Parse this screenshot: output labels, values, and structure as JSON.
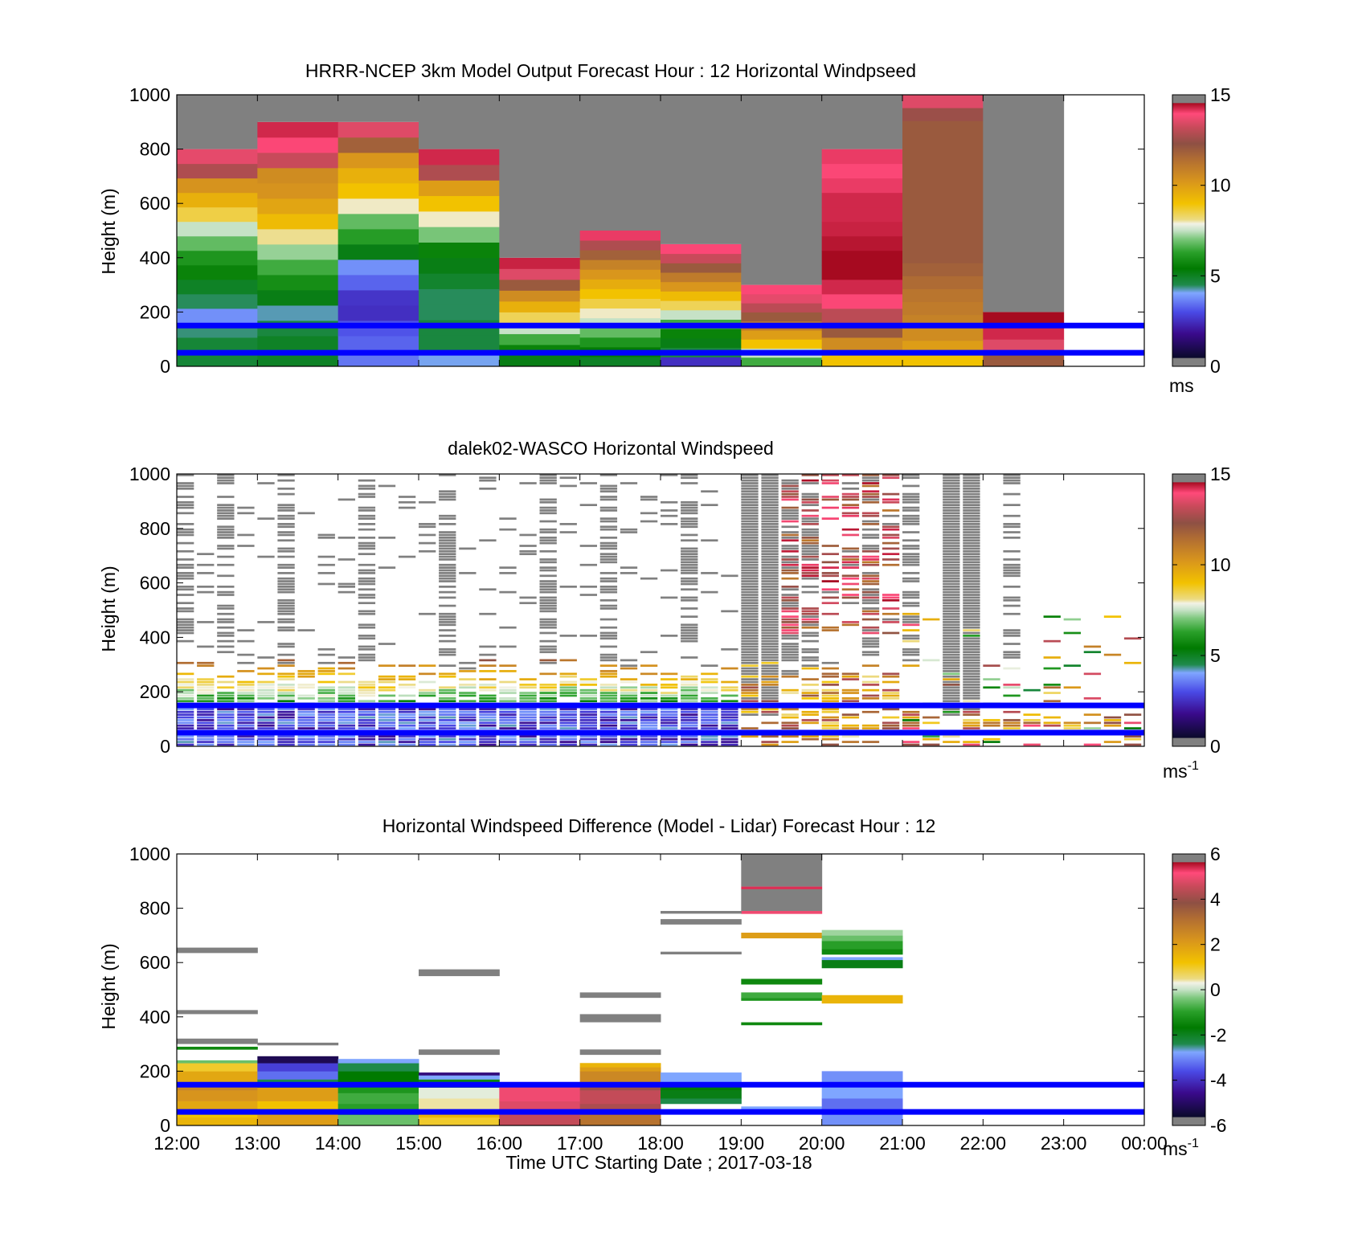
{
  "xaxis": {
    "ticks": [
      "12:00",
      "13:00",
      "14:00",
      "15:00",
      "16:00",
      "17:00",
      "18:00",
      "19:00",
      "20:00",
      "21:00",
      "22:00",
      "23:00",
      "00:00"
    ],
    "label": "Time UTC  Starting Date ; 2017-03-18"
  },
  "marker_lines": {
    "color": "#0000ff",
    "heights_m": [
      150,
      50
    ]
  },
  "chart_data": [
    {
      "type": "heatmap",
      "title": "HRRR-NCEP 3km Model Output   Forecast Hour : 12 Horizontal Windpseed",
      "ylabel": "Height (m)",
      "ylim": [
        0,
        1000
      ],
      "yticks": [
        "0",
        "200",
        "400",
        "600",
        "800",
        "1000"
      ],
      "colorbar": {
        "range": [
          0,
          15
        ],
        "ticks": [
          "0",
          "5",
          "10",
          "15"
        ],
        "unit": "ms",
        "unit_sup": ""
      },
      "hours": [
        "12:00",
        "13:00",
        "14:00",
        "15:00",
        "16:00",
        "17:00",
        "18:00",
        "19:00",
        "20:00",
        "21:00",
        "22:00",
        "23:00"
      ],
      "columns": [
        {
          "top": 800,
          "values": [
            4.6,
            4.6,
            4.2,
            3.5,
            4.3,
            4.8,
            5.5,
            6.0,
            6.8,
            7.5,
            8.6,
            9.5,
            10.3,
            12.8,
            13.6
          ]
        },
        {
          "top": 900,
          "values": [
            4.8,
            4.8,
            4.5,
            4.0,
            5.0,
            5.8,
            6.5,
            7.2,
            8.2,
            9.2,
            9.8,
            10.3,
            10.5,
            13.2,
            14.0,
            14.5
          ]
        },
        {
          "top": 900,
          "values": [
            3.2,
            3.0,
            2.8,
            2.2,
            2.3,
            3.0,
            3.5,
            5.0,
            6.2,
            6.8,
            8.0,
            9.0,
            9.5,
            10.2,
            11.8,
            13.5
          ]
        },
        {
          "top": 800,
          "values": [
            3.8,
            4.5,
            4.5,
            4.3,
            4.3,
            4.7,
            5.0,
            5.5,
            7.0,
            8.0,
            9.0,
            10.0,
            12.8,
            14.5
          ]
        },
        {
          "top": 400,
          "values": [
            5.0,
            5.5,
            6.5,
            7.5,
            8.5,
            9.5,
            10.5,
            12.0,
            13.5,
            14.6
          ]
        },
        {
          "top": 500,
          "values": [
            4.8,
            5.3,
            6.0,
            6.8,
            7.5,
            8.0,
            8.6,
            9.0,
            9.6,
            10.2,
            10.8,
            11.8,
            12.8,
            14.2
          ]
        },
        {
          "top": 450,
          "values": [
            2.2,
            4.5,
            5.0,
            5.5,
            6.5,
            7.5,
            8.5,
            9.2,
            10.2,
            11.0,
            12.0,
            13.2,
            14.0
          ]
        },
        {
          "top": 300,
          "values": [
            6.5,
            7.5,
            9.0,
            10.0,
            11.0,
            12.0,
            13.0,
            13.6,
            14.0
          ]
        },
        {
          "top": 800,
          "values": [
            9.0,
            10.5,
            12.0,
            13.0,
            14.0,
            14.5,
            15.0,
            15.0,
            14.8,
            14.6,
            14.5,
            14.5,
            14.2,
            14.0,
            14.2
          ]
        },
        {
          "top": 1000,
          "values": [
            9.0,
            10.0,
            10.5,
            10.8,
            11.0,
            11.2,
            11.5,
            11.8,
            12.0,
            12.0,
            12.0,
            12.0,
            12.0,
            12.0,
            12.0,
            12.0,
            12.0,
            12.0,
            12.0,
            12.5,
            13.5
          ]
        },
        {
          "top": 200,
          "values": [
            12.0,
            13.5,
            14.5,
            15.0
          ]
        }
      ]
    },
    {
      "type": "heatmap",
      "title": "dalek02-WASCO  Horizontal Windspeed",
      "ylabel": "Height (m)",
      "ylim": [
        0,
        1000
      ],
      "yticks": [
        "0",
        "200",
        "400",
        "600",
        "800",
        "1000"
      ],
      "colorbar": {
        "range": [
          0,
          15
        ],
        "ticks": [
          "0",
          "5",
          "10",
          "15"
        ],
        "unit": "ms",
        "unit_sup": "-1"
      },
      "hours": [
        "12:00",
        "13:00",
        "14:00",
        "15:00",
        "16:00",
        "17:00",
        "18:00",
        "19:00",
        "20:00",
        "21:00",
        "22:00",
        "23:00"
      ],
      "gap_cols": [
        0,
        2,
        5,
        9,
        13,
        18,
        21,
        25,
        29,
        30,
        31,
        34,
        36,
        38,
        39,
        41
      ]
    },
    {
      "type": "heatmap",
      "title": "Horizontal Windspeed Difference (Model - Lidar) Forecast Hour : 12",
      "ylabel": "Height (m)",
      "ylim": [
        0,
        1000
      ],
      "yticks": [
        "0",
        "200",
        "400",
        "600",
        "800",
        "1000"
      ],
      "colorbar": {
        "range": [
          -6,
          6
        ],
        "ticks": [
          "-6",
          "-4",
          "-2",
          "0",
          "2",
          "4",
          "6"
        ],
        "unit": "ms",
        "unit_sup": "-1"
      },
      "hours": [
        "12:00",
        "13:00",
        "14:00",
        "15:00",
        "16:00",
        "17:00",
        "18:00",
        "19:00",
        "20:00",
        "21:00",
        "22:00",
        "23:00"
      ],
      "cells": [
        [
          0,
          0,
          30,
          1.5
        ],
        [
          0,
          30,
          60,
          1.2
        ],
        [
          0,
          60,
          90,
          1.8
        ],
        [
          0,
          90,
          130,
          2.2
        ],
        [
          0,
          130,
          160,
          2.6
        ],
        [
          0,
          160,
          200,
          1.8
        ],
        [
          0,
          200,
          230,
          1.0
        ],
        [
          0,
          230,
          240,
          -0.5
        ],
        [
          0,
          280,
          290,
          -1.5
        ],
        [
          1,
          0,
          40,
          2.0
        ],
        [
          1,
          40,
          90,
          1.2
        ],
        [
          1,
          90,
          140,
          2.0
        ],
        [
          1,
          140,
          170,
          -2.5
        ],
        [
          1,
          170,
          200,
          -3.5
        ],
        [
          1,
          200,
          230,
          -4.0
        ],
        [
          1,
          230,
          255,
          -5.5
        ],
        [
          2,
          0,
          40,
          -0.5
        ],
        [
          2,
          40,
          80,
          -1.0
        ],
        [
          2,
          80,
          120,
          -0.8
        ],
        [
          2,
          120,
          160,
          -1.2
        ],
        [
          2,
          160,
          200,
          -1.8
        ],
        [
          2,
          200,
          230,
          -2.5
        ],
        [
          2,
          230,
          245,
          -3.0
        ],
        [
          3,
          0,
          30,
          1.0
        ],
        [
          3,
          30,
          60,
          1.5
        ],
        [
          3,
          60,
          100,
          0.5
        ],
        [
          3,
          100,
          140,
          0.2
        ],
        [
          3,
          140,
          170,
          -1.5
        ],
        [
          3,
          170,
          185,
          -3.0
        ],
        [
          3,
          185,
          195,
          -5.0
        ],
        [
          4,
          0,
          40,
          4.5
        ],
        [
          4,
          40,
          90,
          4.8
        ],
        [
          4,
          90,
          140,
          5.0
        ],
        [
          4,
          140,
          160,
          5.2
        ],
        [
          5,
          0,
          40,
          3.0
        ],
        [
          5,
          40,
          80,
          4.2
        ],
        [
          5,
          80,
          130,
          4.5
        ],
        [
          5,
          130,
          160,
          4.0
        ],
        [
          5,
          160,
          200,
          2.5
        ],
        [
          5,
          200,
          215,
          2.0
        ],
        [
          5,
          215,
          230,
          1.5
        ],
        [
          6,
          80,
          100,
          -2.5
        ],
        [
          6,
          100,
          130,
          -2.0
        ],
        [
          6,
          130,
          160,
          -1.8
        ],
        [
          6,
          160,
          195,
          -3.0
        ],
        [
          7,
          50,
          70,
          -3.0
        ],
        [
          7,
          370,
          380,
          -1.5
        ],
        [
          7,
          460,
          470,
          -1.2
        ],
        [
          7,
          470,
          490,
          -0.8
        ],
        [
          7,
          520,
          540,
          -1.5
        ],
        [
          7,
          690,
          710,
          2.0
        ],
        [
          7,
          780,
          790,
          5.0
        ],
        [
          7,
          870,
          880,
          5.5
        ],
        [
          8,
          0,
          40,
          -3.2
        ],
        [
          8,
          40,
          100,
          -3.5
        ],
        [
          8,
          100,
          160,
          -3.0
        ],
        [
          8,
          160,
          200,
          -3.2
        ],
        [
          8,
          450,
          480,
          1.5
        ],
        [
          8,
          580,
          610,
          -2.0
        ],
        [
          8,
          610,
          620,
          -3.0
        ],
        [
          8,
          630,
          650,
          -1.5
        ],
        [
          8,
          650,
          680,
          -1.0
        ],
        [
          8,
          680,
          700,
          -0.5
        ],
        [
          8,
          700,
          720,
          -0.2
        ]
      ],
      "nan_cells": [
        [
          0,
          300,
          320
        ],
        [
          0,
          410,
          425
        ],
        [
          0,
          635,
          655
        ],
        [
          1,
          295,
          305
        ],
        [
          3,
          550,
          575
        ],
        [
          3,
          260,
          280
        ],
        [
          5,
          260,
          280
        ],
        [
          5,
          380,
          410
        ],
        [
          5,
          470,
          490
        ],
        [
          6,
          630,
          640
        ],
        [
          6,
          740,
          760
        ],
        [
          6,
          780,
          790
        ],
        [
          7,
          880,
          1000
        ],
        [
          7,
          790,
          870
        ]
      ]
    }
  ]
}
